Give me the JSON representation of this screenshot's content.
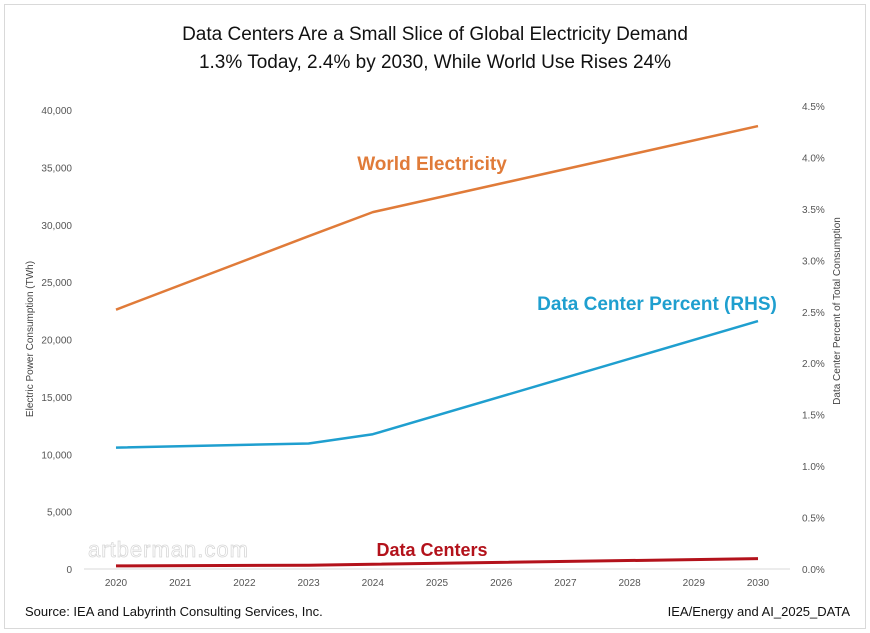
{
  "chart_data": {
    "type": "line",
    "title": "Data Centers Are a Small Slice of Global Electricity Demand",
    "subtitle": "1.3% Today, 2.4% by 2030, While World Use Rises 24%",
    "ylabel": "Electric Power Consumption (TWh)",
    "y2label": "Data Center Percent of Total Consumption",
    "xlim": [
      2020,
      2030
    ],
    "ylim": [
      0,
      40000
    ],
    "y2lim": [
      0,
      4.5
    ],
    "grid": false,
    "x_ticks": [
      "2020",
      "2021",
      "2022",
      "2023",
      "2024",
      "2025",
      "2026",
      "2027",
      "2028",
      "2029",
      "2030"
    ],
    "y_ticks": [
      "0",
      "5,000",
      "10,000",
      "15,000",
      "20,000",
      "25,000",
      "30,000",
      "35,000",
      "40,000"
    ],
    "y2_ticks": [
      "0.0%",
      "0.5%",
      "1.0%",
      "1.5%",
      "2.0%",
      "2.5%",
      "3.0%",
      "3.5%",
      "4.0%",
      "4.5%"
    ],
    "series": [
      {
        "name": "World Electricity",
        "axis": "left",
        "color": "#e07b39",
        "x": [
          2020,
          2023,
          2024,
          2030
        ],
        "y": [
          22600,
          29000,
          31100,
          38600
        ]
      },
      {
        "name": "Data Center Percent (RHS)",
        "axis": "right",
        "color": "#1f9fcf",
        "x": [
          2020,
          2023,
          2024,
          2030
        ],
        "y": [
          1.18,
          1.22,
          1.31,
          2.41
        ]
      },
      {
        "name": "Data Centers",
        "axis": "left",
        "color": "#b3121b",
        "x": [
          2020,
          2023,
          2024,
          2030
        ],
        "y": [
          270,
          330,
          415,
          900
        ]
      }
    ]
  },
  "footer": {
    "source": "Source: IEA and Labyrinth Consulting Services, Inc.",
    "dataset": "IEA/Energy and AI_2025_DATA"
  },
  "watermark": "artberman.com"
}
